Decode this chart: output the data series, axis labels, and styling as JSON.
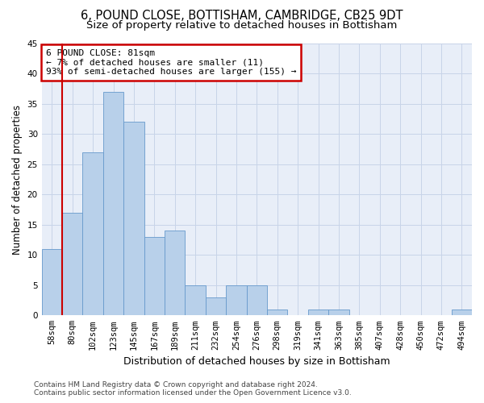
{
  "title": "6, POUND CLOSE, BOTTISHAM, CAMBRIDGE, CB25 9DT",
  "subtitle": "Size of property relative to detached houses in Bottisham",
  "xlabel": "Distribution of detached houses by size in Bottisham",
  "ylabel": "Number of detached properties",
  "footer_line1": "Contains HM Land Registry data © Crown copyright and database right 2024.",
  "footer_line2": "Contains public sector information licensed under the Open Government Licence v3.0.",
  "bar_labels": [
    "58sqm",
    "80sqm",
    "102sqm",
    "123sqm",
    "145sqm",
    "167sqm",
    "189sqm",
    "211sqm",
    "232sqm",
    "254sqm",
    "276sqm",
    "298sqm",
    "319sqm",
    "341sqm",
    "363sqm",
    "385sqm",
    "407sqm",
    "428sqm",
    "450sqm",
    "472sqm",
    "494sqm"
  ],
  "bar_values": [
    11,
    17,
    27,
    37,
    32,
    13,
    14,
    5,
    3,
    5,
    5,
    1,
    0,
    1,
    1,
    0,
    0,
    0,
    0,
    0,
    1
  ],
  "bar_color": "#b8d0ea",
  "bar_edge_color": "#6699cc",
  "annotation_line1": "6 POUND CLOSE: 81sqm",
  "annotation_line2": "← 7% of detached houses are smaller (11)",
  "annotation_line3": "93% of semi-detached houses are larger (155) →",
  "annotation_box_color": "#ffffff",
  "annotation_box_edge": "#cc0000",
  "vline_x": 1.0,
  "vline_color": "#cc0000",
  "ylim": [
    0,
    45
  ],
  "yticks": [
    0,
    5,
    10,
    15,
    20,
    25,
    30,
    35,
    40,
    45
  ],
  "grid_color": "#c8d4e8",
  "bg_color": "#e8eef8",
  "title_fontsize": 10.5,
  "subtitle_fontsize": 9.5,
  "tick_fontsize": 7.5,
  "ylabel_fontsize": 8.5,
  "xlabel_fontsize": 9,
  "annotation_fontsize": 8,
  "footer_fontsize": 6.5
}
